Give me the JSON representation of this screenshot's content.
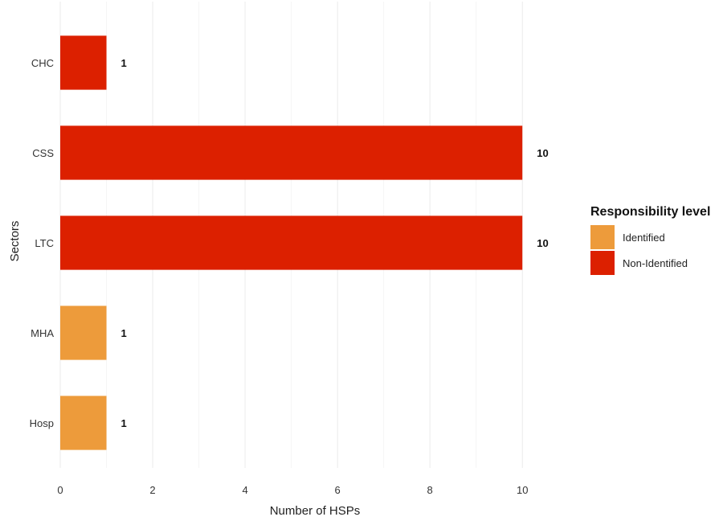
{
  "chart_data": {
    "type": "bar",
    "orientation": "horizontal",
    "xlabel": "Number of HSPs",
    "ylabel": "Sectors",
    "xlim": [
      0,
      11.3
    ],
    "x_ticks": [
      0,
      2,
      4,
      6,
      8,
      10
    ],
    "grid": true,
    "categories": [
      "CHC",
      "CSS",
      "LTC",
      "MHA",
      "Hosp"
    ],
    "values": [
      1,
      10,
      10,
      1,
      1
    ],
    "value_labels": [
      "1",
      "10",
      "10",
      "1",
      "1"
    ],
    "groups": [
      "Non-Identified",
      "Non-Identified",
      "Non-Identified",
      "Identified",
      "Identified"
    ],
    "legend": {
      "title": "Responsibility level",
      "position": "right",
      "items": [
        {
          "name": "Identified",
          "color": "#ED9B3B"
        },
        {
          "name": "Non-Identified",
          "color": "#DC2000"
        }
      ]
    }
  }
}
